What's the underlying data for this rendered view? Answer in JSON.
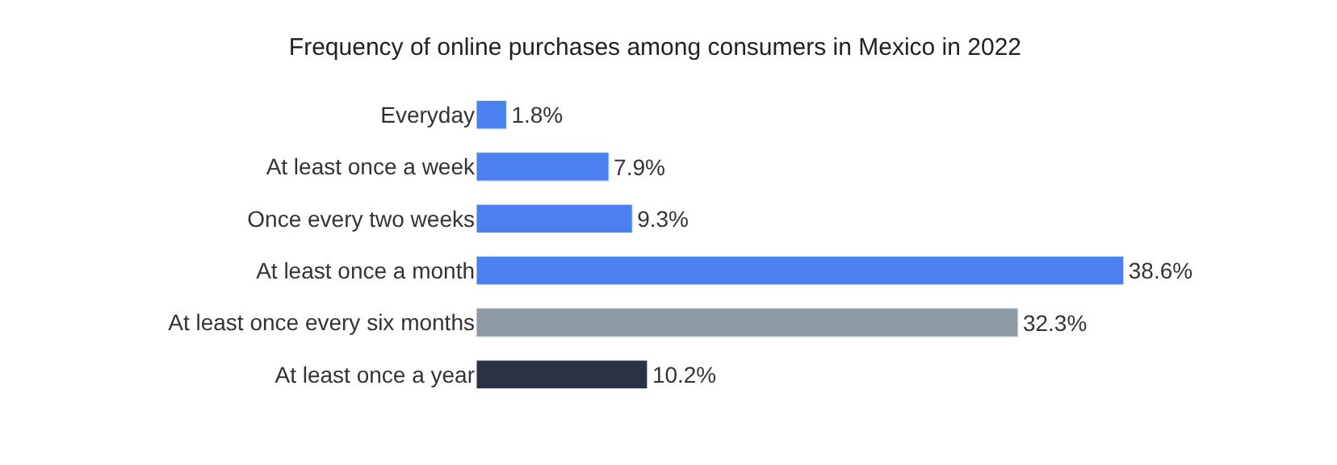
{
  "chart_data": {
    "type": "bar",
    "orientation": "horizontal",
    "title": "Frequency of online purchases among consumers in Mexico in 2022",
    "categories": [
      "Everyday",
      "At least once a week",
      "Once every two weeks",
      "At least once a month",
      "At least once every six months",
      "At least once a year"
    ],
    "values": [
      1.8,
      7.9,
      9.3,
      38.6,
      32.3,
      10.2
    ],
    "colors": [
      "#4a80f0",
      "#4a80f0",
      "#4a80f0",
      "#4a80f0",
      "#8e99a6",
      "#2b3243"
    ],
    "value_labels": [
      "1.8%",
      "7.9%",
      "9.3%",
      "38.6%",
      "32.3%",
      "10.2%"
    ],
    "legend": false
  }
}
